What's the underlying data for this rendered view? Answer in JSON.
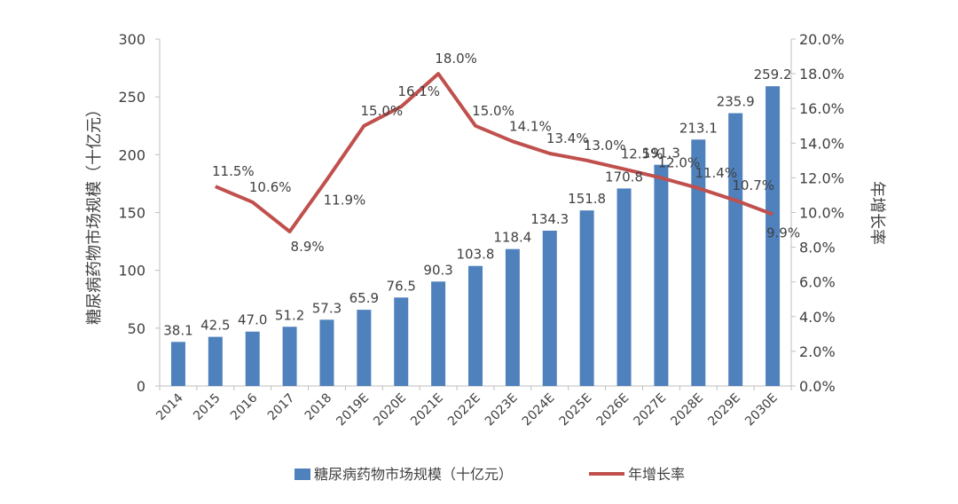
{
  "chart_data": {
    "type": "bar+line",
    "categories": [
      "2014",
      "2015",
      "2016",
      "2017",
      "2018",
      "2019E",
      "2020E",
      "2021E",
      "2022E",
      "2023E",
      "2024E",
      "2025E",
      "2026E",
      "2027E",
      "2028E",
      "2029E",
      "2030E"
    ],
    "series": [
      {
        "name": "糖尿病药物市场规模（十亿元）",
        "type": "bar",
        "axis": "left",
        "values": [
          38.1,
          42.5,
          47.0,
          51.2,
          57.3,
          65.9,
          76.5,
          90.3,
          103.8,
          118.4,
          134.3,
          151.8,
          170.8,
          191.3,
          213.1,
          235.9,
          259.2
        ],
        "labels": [
          "38.1",
          "42.5",
          "47.0",
          "51.2",
          "57.3",
          "65.9",
          "76.5",
          "90.3",
          "103.8",
          "118.4",
          "134.3",
          "151.8",
          "170.8",
          "191.3",
          "213.1",
          "235.9",
          "259.2"
        ]
      },
      {
        "name": "年增长率",
        "type": "line",
        "axis": "right",
        "values": [
          null,
          11.5,
          10.6,
          8.9,
          11.9,
          15.0,
          16.1,
          18.0,
          15.0,
          14.1,
          13.4,
          13.0,
          12.5,
          12.0,
          11.4,
          10.7,
          9.9
        ],
        "labels": [
          null,
          "11.5%",
          "10.6%",
          "8.9%",
          "11.9%",
          "15.0%",
          "16.1%",
          "18.0%",
          "15.0%",
          "14.1%",
          "13.4%",
          "13.0%",
          "12.5%",
          "12.0%",
          "11.4%",
          "10.7%",
          "9.9%"
        ]
      }
    ],
    "ylabel": "糖尿病药物市场规模（十亿元）",
    "y2label": "年增长率",
    "ylim": [
      0,
      300
    ],
    "y2lim": [
      0,
      20
    ],
    "yticks": [
      "0",
      "50",
      "100",
      "150",
      "200",
      "250",
      "300"
    ],
    "y2ticks": [
      "0.0%",
      "2.0%",
      "4.0%",
      "6.0%",
      "8.0%",
      "10.0%",
      "12.0%",
      "14.0%",
      "16.0%",
      "18.0%",
      "20.0%"
    ],
    "legend_position": "bottom"
  },
  "colors": {
    "bar": "#4F81BD",
    "line": "#C0504D",
    "axis": "#BFBFBF",
    "text": "#404040"
  }
}
